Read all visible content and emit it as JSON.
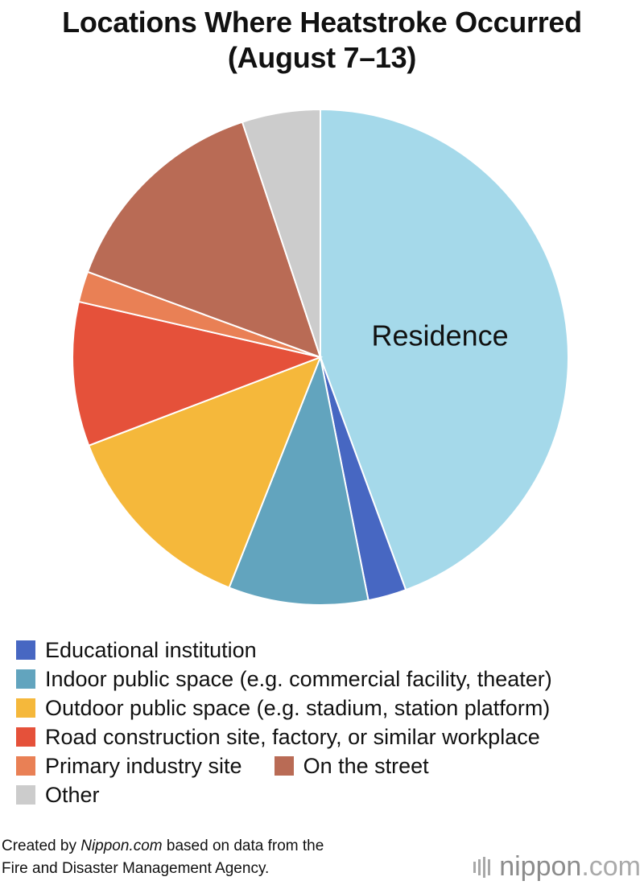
{
  "title_line1": "Locations Where Heatstroke Occurred",
  "title_line2": "(August 7–13)",
  "chart_data": {
    "type": "pie",
    "title": "Locations Where Heatstroke Occurred (August 7–13)",
    "start_angle_deg": 0,
    "direction": "clockwise",
    "slices": [
      {
        "name": "Residence",
        "value": 44.4,
        "color": "#a5d9ea",
        "label": "Residence"
      },
      {
        "name": "Educational institution",
        "value": 2.5,
        "color": "#4767c2",
        "label": ""
      },
      {
        "name": "Indoor public space (e.g. commercial facility, theater)",
        "value": 9.1,
        "color": "#62a4be",
        "label": ""
      },
      {
        "name": "Outdoor public space (e.g. stadium, station platform)",
        "value": 13.2,
        "color": "#f5b83b",
        "label": ""
      },
      {
        "name": "Road construction site, factory, or similar workplace",
        "value": 9.4,
        "color": "#e5513a",
        "label": ""
      },
      {
        "name": "Primary industry site",
        "value": 2.0,
        "color": "#e98055",
        "label": ""
      },
      {
        "name": "On the street",
        "value": 14.3,
        "color": "#b96b55",
        "label": ""
      },
      {
        "name": "Other",
        "value": 5.1,
        "color": "#cccccc",
        "label": ""
      }
    ]
  },
  "legend": {
    "rows": [
      [
        {
          "label": "Educational institution",
          "color": "#4767c2"
        }
      ],
      [
        {
          "label": "Indoor public space (e.g. commercial facility, theater)",
          "color": "#62a4be"
        }
      ],
      [
        {
          "label": "Outdoor public space (e.g. stadium, station platform)",
          "color": "#f5b83b"
        }
      ],
      [
        {
          "label": "Road construction site, factory, or similar workplace",
          "color": "#e5513a"
        }
      ],
      [
        {
          "label": "Primary industry site",
          "color": "#e98055"
        },
        {
          "label": "On the street",
          "color": "#b96b55"
        }
      ],
      [
        {
          "label": "Other",
          "color": "#cccccc"
        }
      ]
    ]
  },
  "footer": {
    "prefix": "Created by ",
    "site": "Nippon.com",
    "suffix": " based on data from the",
    "line2": "Fire and Disaster Management Agency."
  },
  "brand": {
    "name": "nippon",
    "tld": ".com"
  }
}
